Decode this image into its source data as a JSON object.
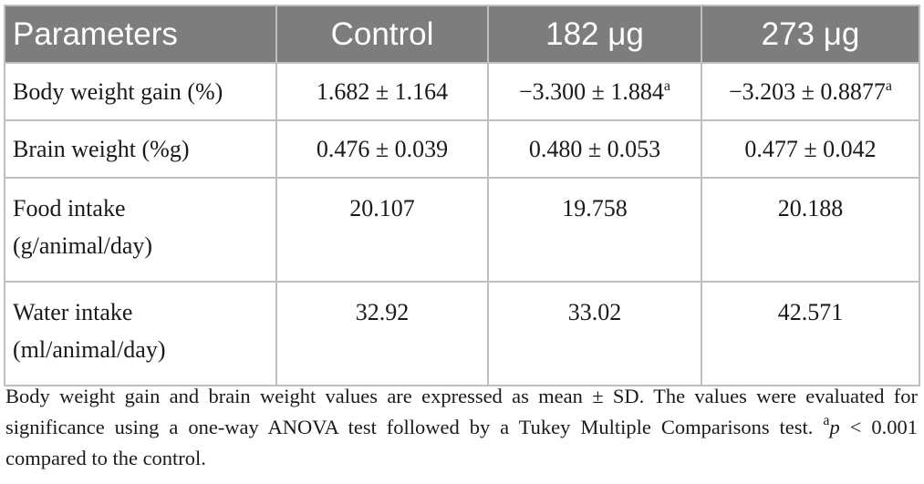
{
  "table": {
    "headers": [
      "Parameters",
      "Control",
      "182 μg",
      "273 μg"
    ],
    "rows": [
      {
        "parameter": "Body weight gain (%)",
        "control": "1.682 ± 1.164",
        "dose182": "−3.300 ± 1.884",
        "dose182_sup": "a",
        "dose273": "−3.203 ± 0.8877",
        "dose273_sup": "a"
      },
      {
        "parameter": "Brain weight (%g)",
        "control": "0.476 ± 0.039",
        "dose182": "0.480 ± 0.053",
        "dose273": "0.477 ± 0.042"
      },
      {
        "parameter_line1": "Food intake",
        "parameter_line2": "(g/animal/day)",
        "control": "20.107",
        "dose182": "19.758",
        "dose273": "20.188"
      },
      {
        "parameter_line1": "Water intake",
        "parameter_line2": "(ml/animal/day)",
        "control": "32.92",
        "dose182": "33.02",
        "dose273": "42.571"
      }
    ]
  },
  "footnote": {
    "text": "Body weight gain and brain weight values are expressed as mean ± SD. The values were evaluated for significance using a one-way ANOVA test followed by a Tukey Multiple Comparisons test. ",
    "sup": "a",
    "p_symbol": "p",
    "tail": " < 0.001 compared to the control."
  },
  "colors": {
    "header_bg": "#7d7d7d",
    "header_text": "#ffffff",
    "border": "#bfbfbf"
  }
}
